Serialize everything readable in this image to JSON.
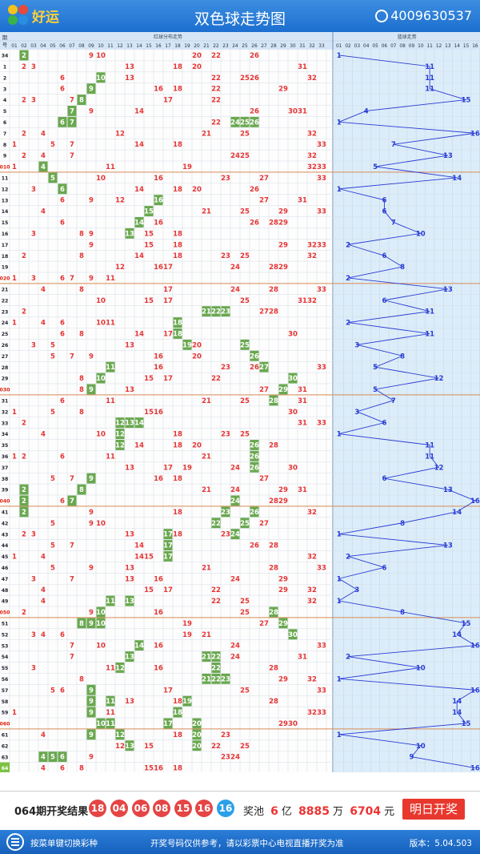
{
  "header": {
    "logo_text": "好运",
    "title": "双色球走势图",
    "phone": "4009630537"
  },
  "table": {
    "issue_header": "期号",
    "red_section_label": "红球分布走势",
    "blue_section_label": "蓝球走势",
    "red_columns": [
      "01",
      "02",
      "03",
      "04",
      "05",
      "06",
      "07",
      "08",
      "09",
      "10",
      "11",
      "12",
      "13",
      "14",
      "15",
      "16",
      "17",
      "18",
      "19",
      "20",
      "21",
      "22",
      "23",
      "24",
      "25",
      "26",
      "27",
      "28",
      "29",
      "30",
      "31",
      "32",
      "33"
    ],
    "blue_columns": [
      "01",
      "02",
      "03",
      "04",
      "05",
      "06",
      "07",
      "08",
      "09",
      "10",
      "11",
      "12",
      "13",
      "14",
      "15",
      "16"
    ],
    "draws": [
      {
        "issue": "34",
        "red": [
          2,
          9,
          10,
          20,
          22,
          26
        ],
        "blue": 1,
        "hl": [
          2
        ]
      },
      {
        "issue": "1",
        "red": [
          2,
          3,
          13,
          18,
          20,
          31
        ],
        "blue": 11,
        "hl": []
      },
      {
        "issue": "2",
        "red": [
          6,
          10,
          13,
          22,
          25,
          26,
          32
        ],
        "blue": 11,
        "hl": [
          10
        ]
      },
      {
        "issue": "3",
        "red": [
          6,
          9,
          16,
          18,
          22,
          29
        ],
        "blue": 11,
        "hl": [
          9
        ]
      },
      {
        "issue": "4",
        "red": [
          2,
          3,
          7,
          8,
          17,
          22
        ],
        "blue": 15,
        "hl": [
          8
        ]
      },
      {
        "issue": "5",
        "red": [
          7,
          9,
          14,
          26,
          30,
          31
        ],
        "blue": 4,
        "hl": [
          7
        ]
      },
      {
        "issue": "6",
        "red": [
          6,
          7,
          22,
          24,
          25,
          26
        ],
        "blue": 1,
        "hl": [
          6,
          7,
          24,
          25,
          26
        ]
      },
      {
        "issue": "7",
        "red": [
          2,
          4,
          12,
          21,
          25,
          32
        ],
        "blue": 16,
        "hl": []
      },
      {
        "issue": "8",
        "red": [
          1,
          5,
          7,
          14,
          18,
          33
        ],
        "blue": 7,
        "hl": []
      },
      {
        "issue": "9",
        "red": [
          2,
          4,
          7,
          24,
          25,
          32
        ],
        "blue": 13,
        "hl": []
      },
      {
        "issue": "010",
        "red": [
          1,
          4,
          11,
          19,
          32,
          33
        ],
        "blue": 5,
        "hl": [
          4
        ]
      },
      {
        "issue": "11",
        "red": [
          5,
          10,
          16,
          23,
          27,
          33
        ],
        "blue": 14,
        "hl": [
          5
        ]
      },
      {
        "issue": "12",
        "red": [
          3,
          6,
          14,
          18,
          20,
          26
        ],
        "blue": 1,
        "hl": [
          6
        ]
      },
      {
        "issue": "13",
        "red": [
          6,
          9,
          12,
          16,
          27,
          31
        ],
        "blue": 6,
        "hl": [
          16
        ]
      },
      {
        "issue": "14",
        "red": [
          4,
          15,
          21,
          25,
          29,
          33
        ],
        "blue": 6,
        "hl": [
          15
        ]
      },
      {
        "issue": "15",
        "red": [
          6,
          14,
          16,
          26,
          28,
          29
        ],
        "blue": 7,
        "hl": [
          14
        ]
      },
      {
        "issue": "16",
        "red": [
          3,
          8,
          9,
          13,
          15,
          18
        ],
        "blue": 10,
        "hl": [
          13
        ]
      },
      {
        "issue": "17",
        "red": [
          9,
          15,
          18,
          29,
          32,
          33
        ],
        "blue": 2,
        "hl": []
      },
      {
        "issue": "18",
        "red": [
          2,
          8,
          14,
          18,
          23,
          25,
          32
        ],
        "blue": 6,
        "hl": []
      },
      {
        "issue": "19",
        "red": [
          12,
          16,
          17,
          24,
          28,
          29
        ],
        "blue": 8,
        "hl": []
      },
      {
        "issue": "020",
        "red": [
          1,
          3,
          6,
          7,
          9,
          11
        ],
        "blue": 2,
        "hl": []
      },
      {
        "issue": "21",
        "red": [
          4,
          8,
          17,
          24,
          28,
          33
        ],
        "blue": 13,
        "hl": []
      },
      {
        "issue": "22",
        "red": [
          10,
          15,
          17,
          25,
          31,
          32
        ],
        "blue": 6,
        "hl": []
      },
      {
        "issue": "23",
        "red": [
          2,
          21,
          22,
          23,
          27,
          28
        ],
        "blue": 11,
        "hl": [
          21,
          22,
          23
        ]
      },
      {
        "issue": "24",
        "red": [
          1,
          4,
          6,
          10,
          11,
          18
        ],
        "blue": 2,
        "hl": [
          18
        ]
      },
      {
        "issue": "25",
        "red": [
          6,
          8,
          14,
          17,
          18,
          30
        ],
        "blue": 11,
        "hl": [
          18
        ]
      },
      {
        "issue": "26",
        "red": [
          3,
          5,
          13,
          19,
          20,
          25
        ],
        "blue": 3,
        "hl": [
          19,
          25
        ]
      },
      {
        "issue": "27",
        "red": [
          5,
          7,
          9,
          16,
          20,
          26
        ],
        "blue": 8,
        "hl": [
          26
        ]
      },
      {
        "issue": "28",
        "red": [
          11,
          16,
          23,
          26,
          27,
          33
        ],
        "blue": 5,
        "hl": [
          11,
          27
        ]
      },
      {
        "issue": "29",
        "red": [
          8,
          10,
          15,
          17,
          22,
          30
        ],
        "blue": 12,
        "hl": [
          10,
          30
        ]
      },
      {
        "issue": "030",
        "red": [
          8,
          9,
          13,
          27,
          29,
          31
        ],
        "blue": 5,
        "hl": [
          9,
          29
        ]
      },
      {
        "issue": "31",
        "red": [
          6,
          11,
          21,
          25,
          28,
          31
        ],
        "blue": 7,
        "hl": [
          28
        ]
      },
      {
        "issue": "32",
        "red": [
          1,
          5,
          8,
          15,
          16,
          30
        ],
        "blue": 3,
        "hl": []
      },
      {
        "issue": "33",
        "red": [
          2,
          12,
          13,
          14,
          31,
          33
        ],
        "blue": 6,
        "hl": [
          12,
          13,
          14
        ]
      },
      {
        "issue": "34",
        "red": [
          4,
          10,
          12,
          18,
          23,
          25
        ],
        "blue": 1,
        "hl": [
          12
        ]
      },
      {
        "issue": "35",
        "red": [
          12,
          14,
          18,
          20,
          26,
          28
        ],
        "blue": 11,
        "hl": [
          12,
          26
        ]
      },
      {
        "issue": "36",
        "red": [
          1,
          2,
          6,
          11,
          21,
          26
        ],
        "blue": 11,
        "hl": [
          26
        ]
      },
      {
        "issue": "37",
        "red": [
          13,
          17,
          19,
          24,
          26,
          30
        ],
        "blue": 12,
        "hl": [
          26
        ]
      },
      {
        "issue": "38",
        "red": [
          5,
          7,
          9,
          16,
          18,
          27
        ],
        "blue": 6,
        "hl": [
          9
        ]
      },
      {
        "issue": "39",
        "red": [
          2,
          8,
          21,
          24,
          29,
          31
        ],
        "blue": 13,
        "hl": [
          2,
          8
        ]
      },
      {
        "issue": "040",
        "red": [
          2,
          6,
          7,
          24,
          28,
          29
        ],
        "blue": 16,
        "hl": [
          2,
          7,
          24
        ]
      },
      {
        "issue": "41",
        "red": [
          2,
          9,
          18,
          23,
          26,
          32
        ],
        "blue": 14,
        "hl": [
          2,
          23,
          26
        ]
      },
      {
        "issue": "42",
        "red": [
          5,
          9,
          10,
          22,
          25,
          27
        ],
        "blue": 8,
        "hl": [
          22,
          25
        ]
      },
      {
        "issue": "43",
        "red": [
          2,
          3,
          13,
          17,
          18,
          23,
          24
        ],
        "blue": 1,
        "hl": [
          17,
          24
        ]
      },
      {
        "issue": "44",
        "red": [
          5,
          7,
          14,
          17,
          26,
          28
        ],
        "blue": 13,
        "hl": [
          17
        ]
      },
      {
        "issue": "45",
        "red": [
          1,
          4,
          14,
          15,
          17,
          32
        ],
        "blue": 2,
        "hl": [
          17
        ]
      },
      {
        "issue": "46",
        "red": [
          5,
          9,
          13,
          21,
          28,
          33
        ],
        "blue": 6,
        "hl": []
      },
      {
        "issue": "47",
        "red": [
          3,
          7,
          13,
          16,
          24,
          29
        ],
        "blue": 1,
        "hl": []
      },
      {
        "issue": "48",
        "red": [
          4,
          15,
          17,
          22,
          29,
          32
        ],
        "blue": 3,
        "hl": []
      },
      {
        "issue": "49",
        "red": [
          4,
          11,
          13,
          22,
          25,
          32
        ],
        "blue": 1,
        "hl": [
          11,
          13
        ]
      },
      {
        "issue": "050",
        "red": [
          2,
          9,
          10,
          16,
          25,
          28
        ],
        "blue": 8,
        "hl": [
          10,
          28
        ]
      },
      {
        "issue": "51",
        "red": [
          8,
          9,
          10,
          19,
          27,
          29
        ],
        "blue": 15,
        "hl": [
          8,
          9,
          10,
          29
        ]
      },
      {
        "issue": "52",
        "red": [
          3,
          4,
          6,
          19,
          21,
          30
        ],
        "blue": 14,
        "hl": [
          30
        ]
      },
      {
        "issue": "53",
        "red": [
          7,
          10,
          14,
          16,
          24,
          33
        ],
        "blue": 16,
        "hl": [
          14
        ]
      },
      {
        "issue": "54",
        "red": [
          7,
          13,
          21,
          22,
          24,
          31
        ],
        "blue": 2,
        "hl": [
          13,
          21,
          22
        ]
      },
      {
        "issue": "55",
        "red": [
          3,
          11,
          12,
          16,
          22,
          28
        ],
        "blue": 10,
        "hl": [
          12,
          22
        ]
      },
      {
        "issue": "56",
        "red": [
          8,
          21,
          22,
          23,
          29,
          32
        ],
        "blue": 1,
        "hl": [
          21,
          22,
          23
        ]
      },
      {
        "issue": "57",
        "red": [
          5,
          6,
          9,
          17,
          25,
          33
        ],
        "blue": 16,
        "hl": [
          9
        ]
      },
      {
        "issue": "58",
        "red": [
          9,
          11,
          13,
          18,
          19,
          28
        ],
        "blue": 14,
        "hl": [
          9,
          11,
          19
        ]
      },
      {
        "issue": "59",
        "red": [
          1,
          9,
          11,
          18,
          32,
          33
        ],
        "blue": 14,
        "hl": [
          9,
          18
        ]
      },
      {
        "issue": "060",
        "red": [
          10,
          11,
          17,
          20,
          29,
          30
        ],
        "blue": 15,
        "hl": [
          10,
          11,
          17,
          20
        ]
      },
      {
        "issue": "61",
        "red": [
          4,
          9,
          12,
          18,
          20,
          23
        ],
        "blue": 1,
        "hl": [
          9,
          12,
          20
        ]
      },
      {
        "issue": "62",
        "red": [
          12,
          13,
          15,
          20,
          22,
          25
        ],
        "blue": 10,
        "hl": [
          13,
          20
        ]
      },
      {
        "issue": "63",
        "red": [
          4,
          5,
          6,
          9,
          23,
          24
        ],
        "blue": 9,
        "hl": [
          4,
          5,
          6
        ]
      },
      {
        "issue": "64",
        "red": [
          4,
          6,
          8,
          15,
          16,
          18
        ],
        "blue": 16,
        "hl": []
      }
    ]
  },
  "result": {
    "issue_label": "064期开奖结果",
    "red_balls": [
      "18",
      "04",
      "06",
      "08",
      "15",
      "16"
    ],
    "blue_ball": "16",
    "pool_label": "奖池",
    "pool_yi": "6",
    "pool_yi_unit": "亿",
    "pool_wan": "8885",
    "pool_wan_unit": "万",
    "pool_yuan": "6704",
    "pool_yuan_unit": "元",
    "next_button": "明日开奖"
  },
  "footer": {
    "menu_hint": "按菜单键切换彩种",
    "disclaimer": "开奖号码仅供参考，请以彩票中心电视直播开奖为准",
    "version": "版本：5.04.503"
  },
  "colors": {
    "red_number": "#e63333",
    "hit_cell": "#6aa84f",
    "blue_line": "#2a3bd4",
    "blue_area": "#dcedf9",
    "separator": "#d88b57",
    "brand": "#1c6fd0"
  }
}
